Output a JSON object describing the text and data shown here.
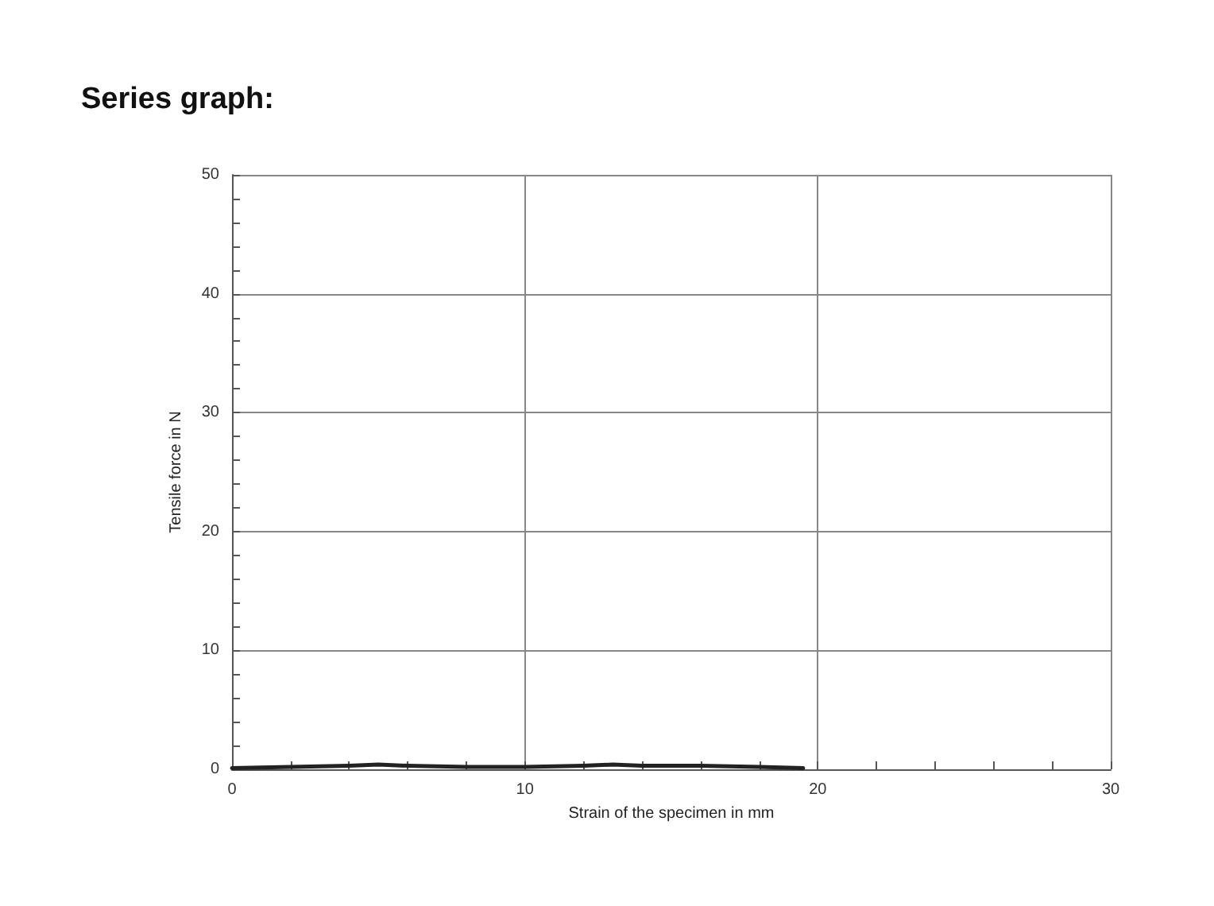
{
  "chart_data": {
    "type": "line",
    "title": "Series graph:",
    "xlabel": "Strain of the specimen in mm",
    "ylabel": "Tensile force in N",
    "series": [
      {
        "color": "#222222",
        "x": [
          0,
          2,
          4,
          5,
          6,
          8,
          10,
          12,
          13,
          14,
          16,
          18,
          19.5
        ],
        "values": [
          0.1,
          0.2,
          0.3,
          0.4,
          0.3,
          0.2,
          0.2,
          0.3,
          0.4,
          0.3,
          0.3,
          0.2,
          0.1
        ]
      }
    ],
    "xlim": [
      0,
      30
    ],
    "ylim": [
      0,
      50
    ],
    "xticks": [
      0,
      {
        "value": 2,
        "label": null
      },
      {
        "value": 4,
        "label": null
      },
      {
        "value": 6,
        "label": null
      },
      {
        "value": 8,
        "label": null
      },
      10,
      {
        "value": 12,
        "label": null
      },
      {
        "value": 14,
        "label": null
      },
      {
        "value": 16,
        "label": null
      },
      {
        "value": 18,
        "label": null
      },
      20,
      {
        "value": 22,
        "label": null
      },
      {
        "value": 24,
        "label": null
      },
      {
        "value": 26,
        "label": null
      },
      {
        "value": 28,
        "label": null
      },
      30
    ],
    "yticks": [
      0,
      {
        "value": 2,
        "label": null
      },
      {
        "value": 4,
        "label": null
      },
      {
        "value": 6,
        "label": null
      },
      {
        "value": 8,
        "label": null
      },
      10,
      {
        "value": 12,
        "label": null
      },
      {
        "value": 14,
        "label": null
      },
      {
        "value": 16,
        "label": null
      },
      {
        "value": 18,
        "label": null
      },
      20,
      {
        "value": 22,
        "label": null
      },
      {
        "value": 24,
        "label": null
      },
      {
        "value": 26,
        "label": null
      },
      {
        "value": 28,
        "label": null
      },
      30,
      {
        "value": 32,
        "label": null
      },
      {
        "value": 34,
        "label": null
      },
      {
        "value": 36,
        "label": null
      },
      {
        "value": 38,
        "label": null
      },
      40,
      {
        "value": 42,
        "label": null
      },
      {
        "value": 44,
        "label": null
      },
      {
        "value": 46,
        "label": null
      },
      {
        "value": 48,
        "label": null
      },
      50
    ],
    "grid": true,
    "marker": "none",
    "line_style": "solid"
  }
}
